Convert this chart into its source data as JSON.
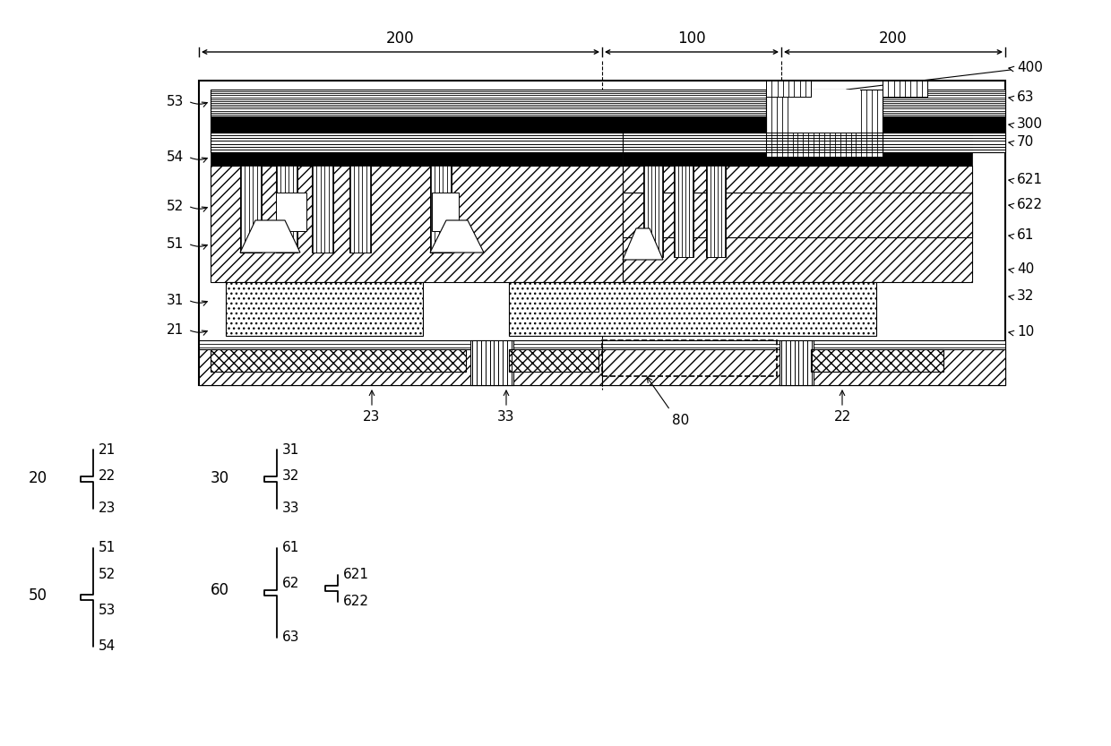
{
  "bg_color": "#ffffff",
  "line_color": "#000000",
  "fig_width": 12.4,
  "fig_height": 8.33,
  "dpi": 100
}
